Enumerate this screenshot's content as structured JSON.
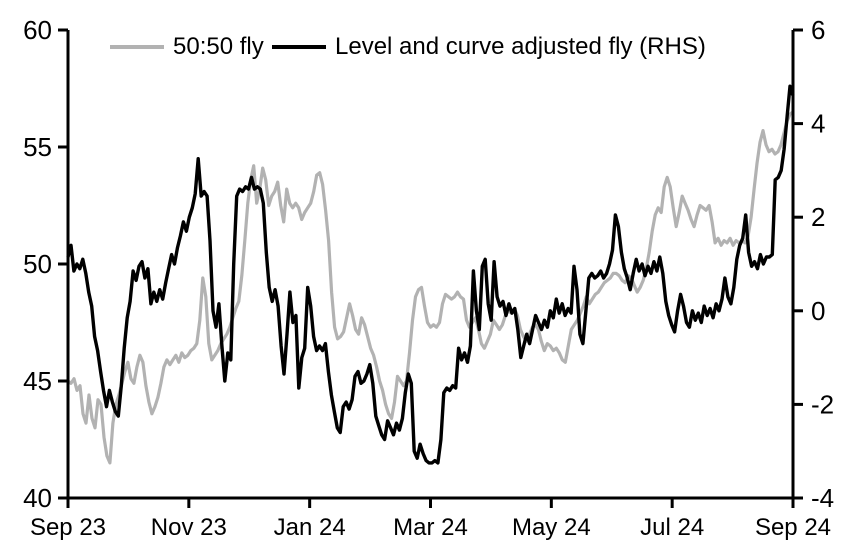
{
  "legend": {
    "items": [
      {
        "label": "50:50 fly",
        "color": "#b2b2b2"
      },
      {
        "label": "Level and curve adjusted fly (RHS)",
        "color": "#000000"
      }
    ]
  },
  "colors": {
    "gray_series": "#b2b2b2",
    "black_series": "#000000",
    "axis": "#000000",
    "background": "#ffffff"
  },
  "chart_data": {
    "type": "line",
    "title": "",
    "grid": false,
    "legend_position": "top",
    "x_axis": {
      "unit": "months since Sep 2023",
      "range": [
        0,
        12
      ],
      "tick_positions": [
        0,
        2,
        4,
        6,
        8,
        10,
        12
      ],
      "tick_labels": [
        "Sep 23",
        "Nov 23",
        "Jan 24",
        "Mar 24",
        "May 24",
        "Jul 24",
        "Sep 24"
      ]
    },
    "left_axis": {
      "range": [
        40,
        60
      ],
      "ticks": [
        40,
        45,
        50,
        55,
        60
      ]
    },
    "right_axis": {
      "range": [
        -4,
        6
      ],
      "ticks": [
        -4,
        -2,
        0,
        2,
        4,
        6
      ]
    },
    "series": [
      {
        "name": "50:50 fly",
        "axis": "left",
        "color": "#b2b2b2",
        "x_uniform_range": [
          0,
          12
        ],
        "values": [
          45.0,
          44.9,
          45.1,
          44.6,
          44.8,
          43.6,
          43.2,
          44.4,
          43.4,
          43.0,
          44.2,
          44.0,
          42.6,
          41.8,
          41.5,
          43.2,
          44.0,
          44.4,
          44.9,
          45.4,
          45.8,
          45.1,
          44.9,
          45.6,
          46.1,
          45.8,
          44.8,
          44.1,
          43.6,
          43.9,
          44.3,
          44.9,
          45.6,
          45.9,
          45.7,
          45.9,
          46.1,
          45.8,
          46.2,
          46.0,
          46.1,
          46.3,
          46.4,
          46.6,
          47.6,
          49.4,
          48.6,
          46.6,
          45.9,
          46.1,
          46.3,
          46.6,
          46.8,
          47.0,
          47.3,
          47.7,
          48.1,
          48.4,
          49.5,
          51.0,
          52.6,
          53.6,
          54.2,
          52.6,
          53.2,
          54.1,
          53.6,
          52.5,
          52.9,
          53.1,
          53.5,
          52.5,
          51.8,
          53.2,
          52.6,
          52.4,
          52.6,
          52.4,
          51.9,
          52.2,
          52.4,
          52.6,
          53.1,
          53.8,
          53.9,
          53.4,
          52.3,
          51.0,
          48.8,
          47.3,
          46.8,
          46.9,
          47.1,
          47.7,
          48.3,
          47.8,
          47.2,
          47.0,
          47.7,
          47.4,
          46.9,
          46.4,
          46.1,
          45.6,
          45.0,
          44.6,
          44.0,
          43.6,
          43.4,
          44.1,
          45.2,
          45.0,
          44.8,
          45.0,
          46.2,
          47.6,
          48.6,
          48.9,
          49.0,
          48.2,
          47.5,
          47.3,
          47.4,
          47.3,
          47.5,
          48.3,
          48.7,
          48.6,
          48.5,
          48.6,
          48.8,
          48.6,
          48.5,
          47.6,
          47.3,
          47.5,
          47.7,
          47.2,
          46.6,
          46.4,
          46.7,
          47.0,
          47.6,
          47.4,
          47.2,
          47.4,
          47.8,
          48.0,
          47.9,
          48.1,
          47.8,
          47.2,
          46.9,
          46.7,
          47.0,
          47.3,
          47.4,
          47.2,
          46.7,
          46.3,
          46.6,
          46.5,
          46.3,
          46.4,
          46.2,
          45.9,
          45.8,
          46.5,
          47.2,
          47.4,
          47.6,
          47.9,
          48.2,
          48.6,
          48.3,
          48.5,
          48.7,
          48.8,
          49.0,
          49.2,
          49.3,
          49.4,
          49.6,
          49.6,
          49.5,
          49.3,
          49.2,
          49.5,
          49.4,
          49.1,
          48.8,
          49.0,
          49.3,
          49.8,
          50.5,
          51.4,
          52.1,
          52.4,
          52.2,
          53.3,
          53.7,
          53.3,
          52.4,
          51.6,
          52.2,
          52.9,
          52.6,
          52.3,
          51.9,
          51.6,
          52.1,
          52.5,
          52.4,
          52.3,
          52.5,
          51.8,
          50.9,
          51.1,
          50.8,
          51.0,
          50.9,
          51.1,
          50.8,
          51.0,
          50.9,
          51.0,
          50.9,
          51.2,
          52.0,
          53.2,
          54.3,
          55.2,
          55.7,
          55.1,
          54.8,
          54.9,
          54.7,
          54.8,
          55.1,
          55.6,
          56.1,
          56.4,
          56.5
        ]
      },
      {
        "name": "Level and curve adjusted fly (RHS)",
        "axis": "right",
        "color": "#000000",
        "x_uniform_range": [
          0,
          12
        ],
        "values": [
          1.15,
          1.4,
          0.85,
          1.0,
          0.9,
          1.1,
          0.8,
          0.4,
          0.1,
          -0.55,
          -0.85,
          -1.3,
          -1.7,
          -2.05,
          -1.7,
          -1.95,
          -2.15,
          -2.25,
          -1.6,
          -0.8,
          -0.15,
          0.2,
          0.85,
          0.65,
          0.95,
          1.05,
          0.7,
          0.9,
          0.15,
          0.4,
          0.2,
          0.45,
          0.25,
          0.6,
          0.9,
          1.2,
          1.0,
          1.35,
          1.6,
          1.9,
          1.7,
          2.0,
          2.2,
          2.5,
          3.25,
          2.45,
          2.55,
          2.45,
          1.5,
          0.0,
          -0.35,
          0.15,
          -0.75,
          -1.5,
          -0.9,
          -1.05,
          1.0,
          2.45,
          2.6,
          2.55,
          2.65,
          2.6,
          2.85,
          2.6,
          2.65,
          2.6,
          2.3,
          1.25,
          0.5,
          0.2,
          0.45,
          0.1,
          -0.75,
          -1.35,
          -0.5,
          0.4,
          -0.25,
          -0.1,
          -1.65,
          -1.0,
          -0.8,
          0.5,
          0.1,
          -0.55,
          -0.85,
          -0.75,
          -0.85,
          -0.7,
          -1.3,
          -1.8,
          -2.15,
          -2.5,
          -2.6,
          -2.05,
          -1.95,
          -2.1,
          -1.9,
          -1.4,
          -1.3,
          -1.55,
          -1.5,
          -1.35,
          -1.15,
          -1.55,
          -2.25,
          -2.45,
          -2.65,
          -2.75,
          -2.35,
          -2.5,
          -2.65,
          -2.4,
          -2.55,
          -2.3,
          -1.75,
          -1.35,
          -1.55,
          -3.0,
          -3.15,
          -2.85,
          -3.05,
          -3.2,
          -3.25,
          -3.25,
          -3.2,
          -3.25,
          -2.75,
          -1.75,
          -1.65,
          -1.7,
          -1.6,
          -1.65,
          -0.8,
          -1.05,
          -0.9,
          -1.1,
          -0.75,
          0.85,
          0.0,
          -0.4,
          0.95,
          1.1,
          0.15,
          -0.2,
          1.05,
          0.3,
          0.1,
          0.2,
          -0.1,
          0.15,
          -0.05,
          0.05,
          -0.4,
          -1.0,
          -0.75,
          -0.5,
          -0.7,
          -0.4,
          -0.1,
          -0.25,
          -0.4,
          -0.2,
          -0.35,
          0.0,
          -0.15,
          0.25,
          -0.05,
          0.15,
          -0.1,
          0.05,
          -0.05,
          0.95,
          0.45,
          -0.5,
          -0.7,
          0.0,
          0.7,
          0.8,
          0.7,
          0.75,
          0.85,
          0.7,
          0.8,
          1.0,
          1.3,
          2.05,
          1.8,
          1.25,
          0.9,
          0.7,
          0.45,
          0.8,
          1.1,
          0.85,
          1.0,
          0.75,
          0.95,
          0.8,
          1.05,
          0.85,
          1.15,
          0.8,
          0.2,
          -0.1,
          -0.3,
          -0.45,
          0.0,
          0.35,
          0.1,
          -0.25,
          -0.35,
          0.0,
          -0.2,
          -0.05,
          -0.25,
          0.1,
          -0.1,
          0.05,
          -0.15,
          0.15,
          0.0,
          0.25,
          0.7,
          0.3,
          0.15,
          0.5,
          1.1,
          1.4,
          1.55,
          2.05,
          1.25,
          0.95,
          1.05,
          0.9,
          1.2,
          1.0,
          1.15,
          1.15,
          1.2,
          2.8,
          2.85,
          3.0,
          3.45,
          4.15,
          4.8,
          4.6
        ]
      }
    ]
  }
}
